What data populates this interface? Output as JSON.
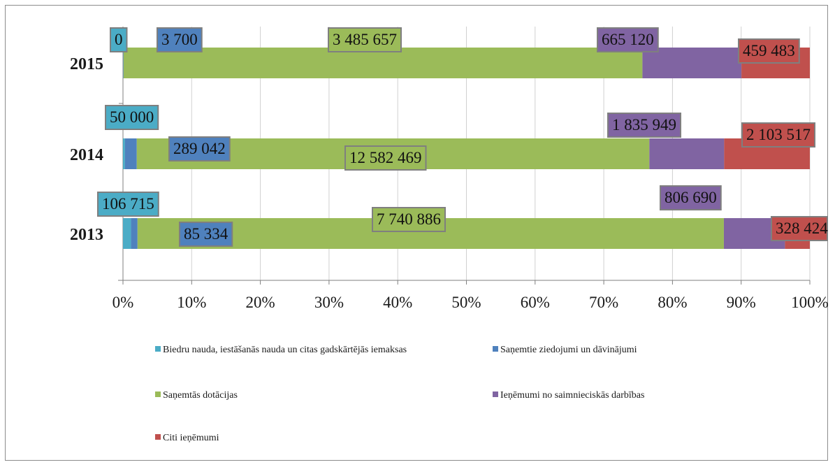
{
  "chart_data": {
    "type": "bar",
    "orientation": "horizontal",
    "stacking": "percent",
    "categories": [
      "2015",
      "2014",
      "2013"
    ],
    "series": [
      {
        "name": "Biedru nauda, iestāšanās nauda un citas gadskārtējās iemaksas",
        "color": "#4bacc6",
        "values": [
          0,
          50000,
          106715
        ],
        "labels": [
          "0",
          "50 000",
          "106 715"
        ]
      },
      {
        "name": "Saņemtie ziedojumi un dāvinājumi",
        "color": "#4f81bd",
        "values": [
          3700,
          289042,
          85334
        ],
        "labels": [
          "3 700",
          "289 042",
          "85 334"
        ]
      },
      {
        "name": "Saņemtās dotācijas",
        "color": "#9bbb59",
        "values": [
          3485657,
          12582469,
          7740886
        ],
        "labels": [
          "3 485 657",
          "12 582 469",
          "7 740 886"
        ]
      },
      {
        "name": "Ieņēmumi no saimnieciskās darbības",
        "color": "#8064a2",
        "values": [
          665120,
          1835949,
          806690
        ],
        "labels": [
          "665 120",
          "1 835 949",
          "806 690"
        ]
      },
      {
        "name": "Citi ieņēmumi",
        "color": "#c0504d",
        "values": [
          459483,
          2103517,
          328424
        ],
        "labels": [
          "459 483",
          "2 103 517",
          "328 424"
        ]
      }
    ],
    "x_ticks": [
      "0%",
      "10%",
      "20%",
      "30%",
      "40%",
      "50%",
      "60%",
      "70%",
      "80%",
      "90%",
      "100%"
    ],
    "xlim": [
      0,
      100
    ],
    "grid": "vertical",
    "legend_position": "bottom",
    "title": "",
    "xlabel": "",
    "ylabel": ""
  }
}
